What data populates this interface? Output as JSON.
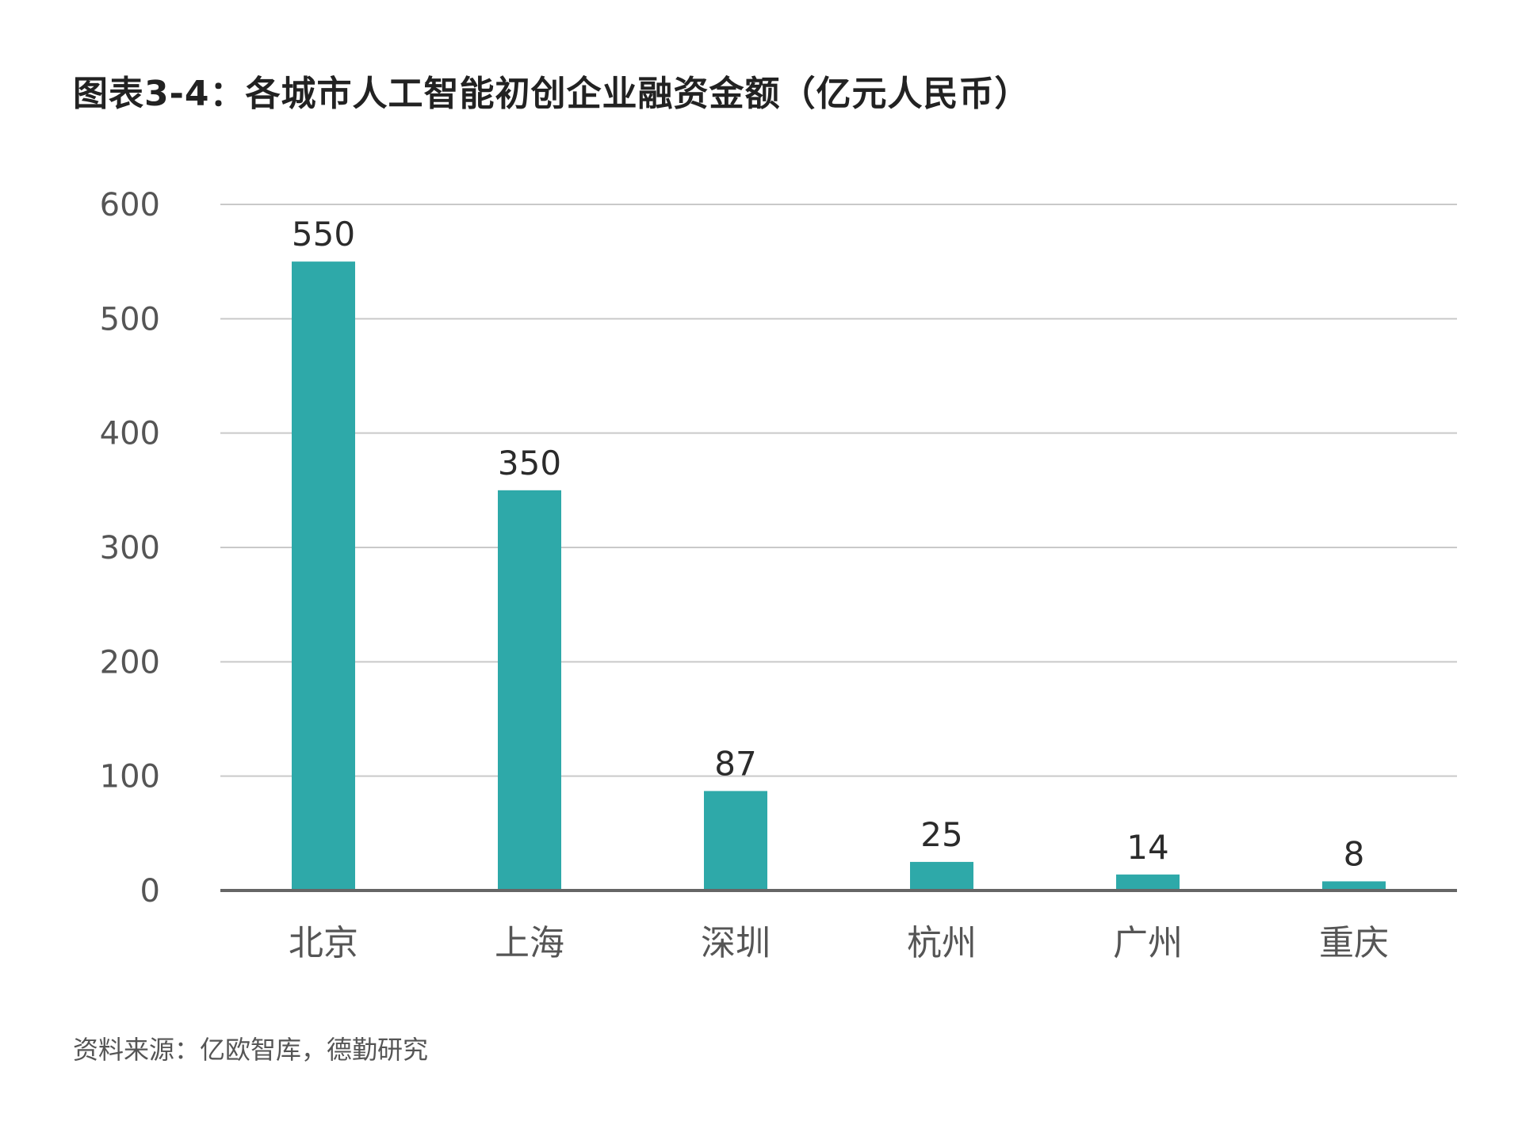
{
  "page": {
    "title": "图表3-4：各城市人工智能初创企业融资金额（亿元人民币）",
    "source": "资料来源：亿欧智库，德勤研究"
  },
  "colors": {
    "bar": "#2ea9a9",
    "grid": "#c9c9c9",
    "axis": "#666666"
  },
  "chart_data": {
    "type": "bar",
    "title": "图表3-4：各城市人工智能初创企业融资金额（亿元人民币）",
    "categories": [
      "北京",
      "上海",
      "深圳",
      "杭州",
      "广州",
      "重庆"
    ],
    "values": [
      550,
      350,
      87,
      25,
      14,
      8
    ],
    "data_labels": [
      "550",
      "350",
      "87",
      "25",
      "14",
      "8"
    ],
    "yticks": [
      0,
      100,
      200,
      300,
      400,
      500,
      600
    ],
    "ylim": [
      0,
      600
    ],
    "grid": true,
    "legend": "none",
    "xlabel": "",
    "ylabel": ""
  }
}
